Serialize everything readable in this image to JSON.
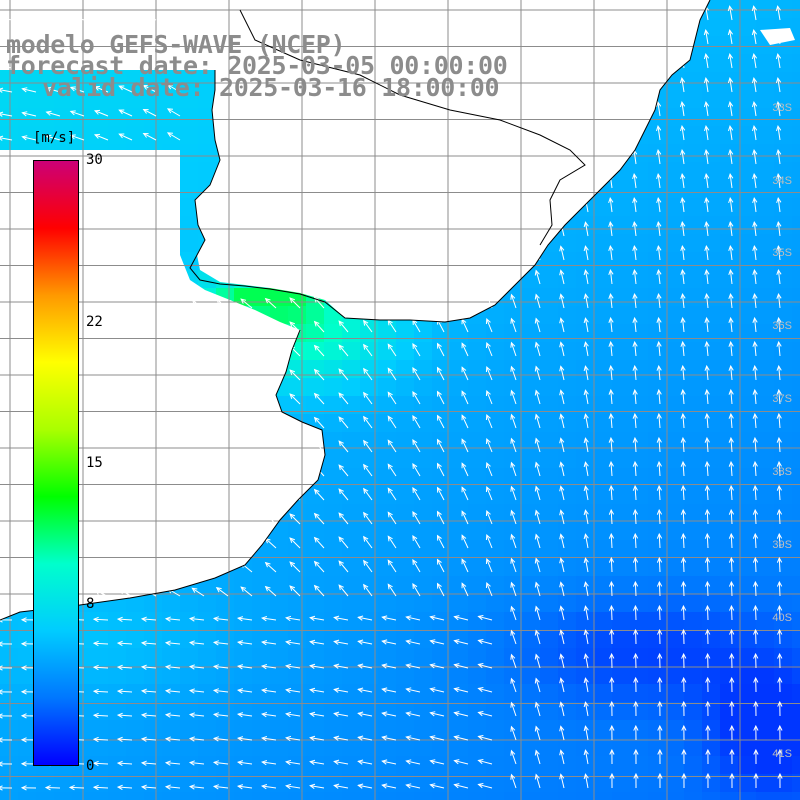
{
  "title": {
    "line1": "modelo GEFS-WAVE (NCEP)",
    "line2": "forecast date: 2025-03-05 00:00:00",
    "line3": "valid date: 2025-03-16 18:00:00"
  },
  "colorbar": {
    "unit": "[m/s]",
    "ticks": [
      "30",
      "22",
      "15",
      "8",
      "0"
    ],
    "tick_values": [
      30,
      22,
      15,
      8,
      0
    ],
    "min": 0,
    "max": 30,
    "colors": [
      "#0000ff",
      "#0077ff",
      "#00ccff",
      "#00ffcc",
      "#00ff00",
      "#aaff00",
      "#ffff00",
      "#ff9900",
      "#ff0000",
      "#cc0077"
    ]
  },
  "map": {
    "land_color": "#ffffff",
    "coastline_color": "#000000",
    "grid_color": "#8c8c8c",
    "lat_labels": [
      "33S",
      "34S",
      "35S",
      "36S",
      "37S",
      "38S",
      "39S",
      "40S",
      "41S"
    ],
    "region": "Río de la Plata / South Atlantic"
  }
}
